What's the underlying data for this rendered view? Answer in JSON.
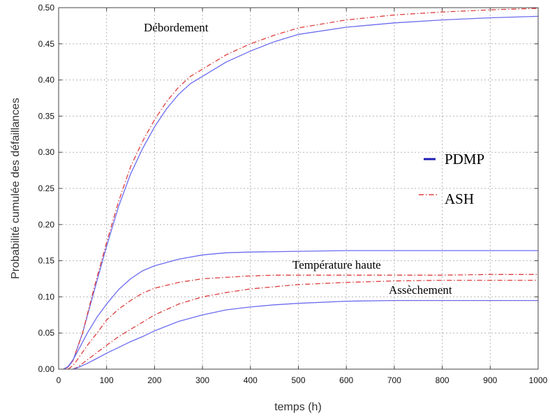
{
  "chart_data": {
    "type": "line",
    "xlabel": "temps (h)",
    "ylabel": "Probabilité cumulée des défaillances",
    "xlim": [
      0,
      1000
    ],
    "ylim": [
      0,
      0.5
    ],
    "xticks": [
      "0",
      "100",
      "200",
      "300",
      "400",
      "500",
      "600",
      "700",
      "800",
      "900",
      "1000"
    ],
    "yticks": [
      "0.00",
      "0.05",
      "0.10",
      "0.15",
      "0.20",
      "0.25",
      "0.30",
      "0.35",
      "0.40",
      "0.45",
      "0.50"
    ],
    "grid": true,
    "legend": {
      "position": "right",
      "entries": [
        {
          "label": "PDMP",
          "color": "#1f1fb4",
          "style": "solid"
        },
        {
          "label": "ASH",
          "color": "#e03c3c",
          "style": "dashdot"
        }
      ]
    },
    "annotations": [
      "Débordement",
      "Température haute",
      "Assèchement"
    ],
    "series": [
      {
        "group": "Débordement",
        "legend": "PDMP",
        "color": "#6b6bf0",
        "style": "solid",
        "x": [
          10,
          20,
          30,
          50,
          75,
          100,
          125,
          150,
          175,
          200,
          225,
          250,
          275,
          300,
          350,
          400,
          450,
          500,
          600,
          700,
          800,
          900,
          1000
        ],
        "y": [
          0.0,
          0.003,
          0.012,
          0.05,
          0.11,
          0.17,
          0.225,
          0.27,
          0.305,
          0.335,
          0.36,
          0.38,
          0.395,
          0.405,
          0.425,
          0.44,
          0.453,
          0.463,
          0.473,
          0.479,
          0.483,
          0.486,
          0.488
        ]
      },
      {
        "group": "Débordement",
        "legend": "ASH",
        "color": "#e03c3c",
        "style": "dashdot",
        "x": [
          10,
          20,
          30,
          50,
          75,
          100,
          125,
          150,
          175,
          200,
          225,
          250,
          275,
          300,
          350,
          400,
          450,
          500,
          600,
          700,
          800,
          900,
          1000
        ],
        "y": [
          0.0,
          0.003,
          0.012,
          0.05,
          0.115,
          0.175,
          0.232,
          0.28,
          0.315,
          0.345,
          0.37,
          0.39,
          0.405,
          0.415,
          0.435,
          0.45,
          0.462,
          0.472,
          0.483,
          0.49,
          0.494,
          0.497,
          0.499
        ]
      },
      {
        "group": "Température haute",
        "legend": "PDMP",
        "color": "#6b6bf0",
        "style": "solid",
        "x": [
          10,
          20,
          30,
          40,
          60,
          80,
          100,
          125,
          150,
          175,
          200,
          250,
          300,
          350,
          400,
          500,
          600,
          700,
          800,
          900,
          1000
        ],
        "y": [
          0.0,
          0.004,
          0.013,
          0.025,
          0.05,
          0.072,
          0.09,
          0.11,
          0.125,
          0.136,
          0.143,
          0.152,
          0.158,
          0.161,
          0.162,
          0.163,
          0.164,
          0.164,
          0.164,
          0.164,
          0.164
        ]
      },
      {
        "group": "Température haute",
        "legend": "ASH",
        "color": "#e03c3c",
        "style": "dashdot",
        "x": [
          20,
          30,
          40,
          60,
          80,
          100,
          125,
          150,
          175,
          200,
          250,
          300,
          350,
          400,
          450,
          500,
          600,
          700,
          800,
          900,
          1000
        ],
        "y": [
          0.0,
          0.005,
          0.014,
          0.033,
          0.05,
          0.068,
          0.083,
          0.095,
          0.105,
          0.112,
          0.12,
          0.125,
          0.127,
          0.129,
          0.13,
          0.13,
          0.13,
          0.13,
          0.13,
          0.131,
          0.131
        ]
      },
      {
        "group": "Assèchement",
        "legend": "ASH",
        "color": "#e03c3c",
        "style": "dashdot",
        "x": [
          30,
          40,
          60,
          80,
          100,
          125,
          150,
          175,
          200,
          250,
          300,
          350,
          400,
          450,
          500,
          600,
          700,
          800,
          900,
          1000
        ],
        "y": [
          0.0,
          0.003,
          0.013,
          0.023,
          0.033,
          0.045,
          0.055,
          0.065,
          0.075,
          0.09,
          0.1,
          0.106,
          0.111,
          0.114,
          0.117,
          0.12,
          0.122,
          0.123,
          0.123,
          0.123
        ]
      },
      {
        "group": "Assèchement",
        "legend": "PDMP",
        "color": "#6b6bf0",
        "style": "solid",
        "x": [
          30,
          40,
          60,
          80,
          100,
          125,
          150,
          175,
          200,
          250,
          300,
          350,
          400,
          450,
          500,
          600,
          700,
          800,
          900,
          1000
        ],
        "y": [
          0.0,
          0.002,
          0.008,
          0.015,
          0.022,
          0.03,
          0.038,
          0.045,
          0.053,
          0.066,
          0.075,
          0.082,
          0.086,
          0.089,
          0.091,
          0.094,
          0.095,
          0.095,
          0.095,
          0.095
        ]
      }
    ]
  }
}
